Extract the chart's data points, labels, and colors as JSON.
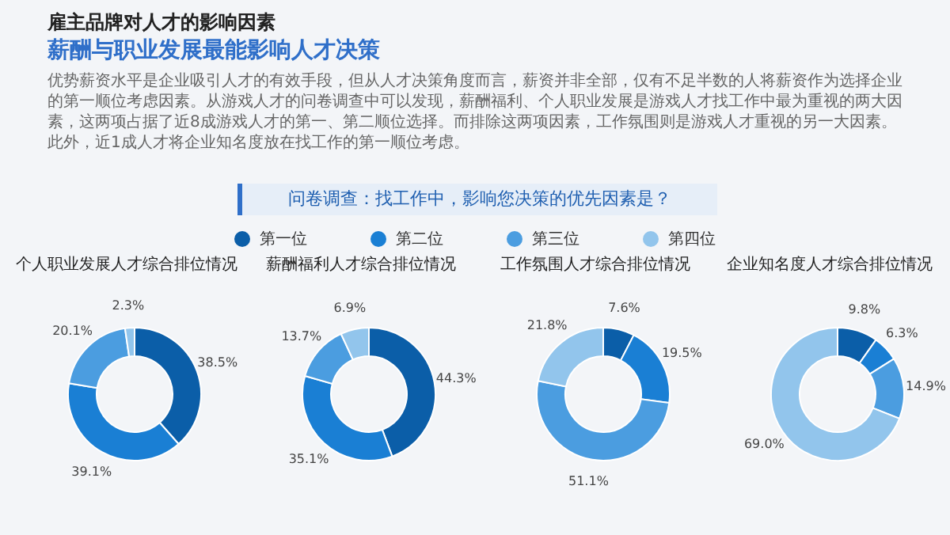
{
  "chart_data": [
    {
      "type": "other",
      "title": "雇主品牌对人才的影响因素",
      "subtitle": "薪酬与职业发展最能影响人才决策",
      "annotations": [
        "优势薪资水平是企业吸引人才的有效手段，但从人才决策角度而言，薪资并非全部，仅有不足半数的人将薪资作为选择企业的第一顺位考虑因素。从游戏人才的问卷调查中可以发现，薪酬福利、个人职业发展是游戏人才找工作中最为重视的两大因素，这两项占据了近8成游戏人才的第一、第二顺位选择。而排除这两项因素，工作氛围则是游戏人才重视的另一大因素。此外，近1成人才将企业知名度放在找工作的第一顺位考虑。",
        "问卷调查：找工作中，影响您决策的优先因素是？"
      ]
    },
    {
      "type": "donut",
      "title": "个人职业发展人才综合排位情况",
      "categories": [
        "第一位",
        "第二位",
        "第三位",
        "第四位"
      ],
      "values": [
        38.5,
        39.1,
        20.1,
        2.3
      ],
      "value_labels": [
        "38.5%",
        "39.1%",
        "20.1%",
        "2.3%"
      ],
      "colors": [
        "#0b5ea8",
        "#1a7fd4",
        "#4b9de0",
        "#92c5ec"
      ],
      "legend": "top"
    },
    {
      "type": "donut",
      "title": "薪酬福利人才综合排位情况",
      "values": [
        44.3,
        35.1,
        13.7,
        6.9
      ],
      "value_labels": [
        "44.3%",
        "35.1%",
        "13.7%",
        "6.9%"
      ],
      "colors": [
        "#0b5ea8",
        "#1a7fd4",
        "#4b9de0",
        "#92c5ec"
      ]
    },
    {
      "type": "donut",
      "title": "工作氛围人才综合排位情况",
      "values": [
        7.6,
        19.5,
        51.1,
        21.8
      ],
      "value_labels": [
        "7.6%",
        "19.5%",
        "51.1%",
        "21.8%"
      ],
      "colors": [
        "#0b5ea8",
        "#1a7fd4",
        "#4b9de0",
        "#92c5ec"
      ]
    },
    {
      "type": "donut",
      "title": "企业知名度人才综合排位情况",
      "values": [
        9.8,
        6.3,
        14.9,
        69.0
      ],
      "value_labels": [
        "9.8%",
        "6.3%",
        "14.9%",
        "69.0%"
      ],
      "colors": [
        "#0b5ea8",
        "#1a7fd4",
        "#4b9de0",
        "#92c5ec"
      ]
    }
  ]
}
